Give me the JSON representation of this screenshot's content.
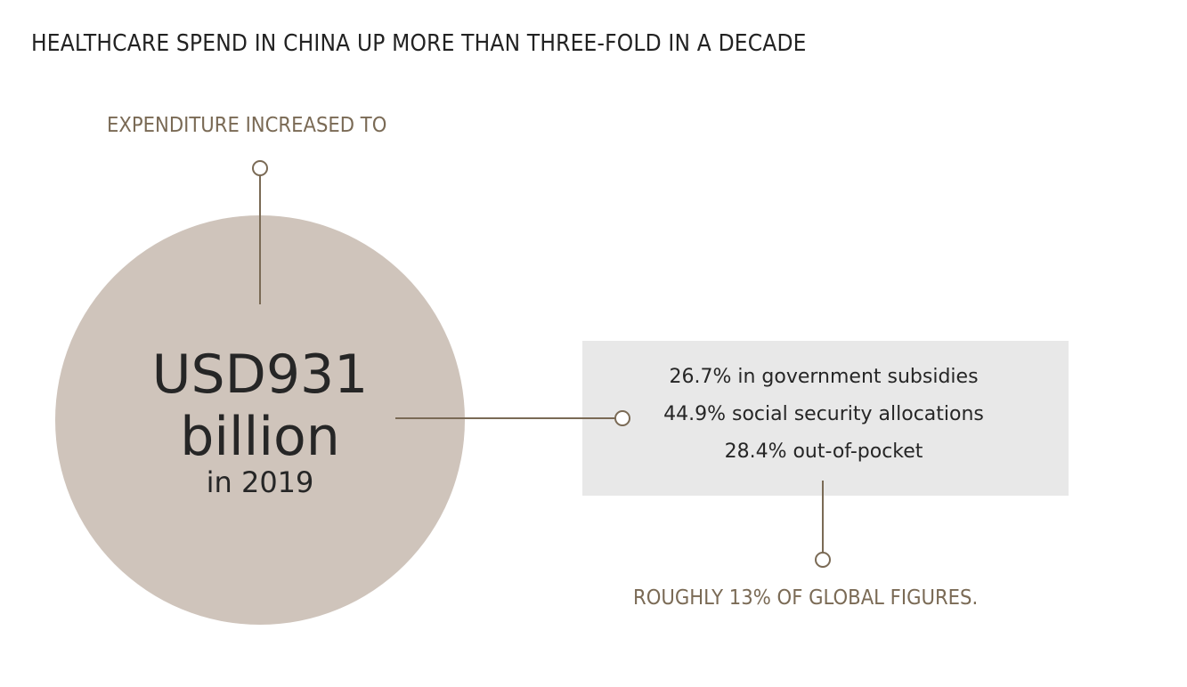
{
  "title": "HEALTHCARE SPEND IN CHINA UP MORE THAN THREE-FOLD IN A DECADE",
  "top_label": "EXPENDITURE INCREASED TO",
  "amount": {
    "value": "USD931",
    "unit": "billion",
    "year": "in 2019"
  },
  "breakdown": [
    "26.7% in government subsidies",
    "44.9% social security allocations",
    "28.4% out-of-pocket"
  ],
  "bottom_label": "ROUGHLY 13% OF GLOBAL FIGURES.",
  "colors": {
    "accent": "#7a6a55",
    "circle": "#cfc4bb",
    "box": "#e8e8e8",
    "text": "#262626"
  }
}
